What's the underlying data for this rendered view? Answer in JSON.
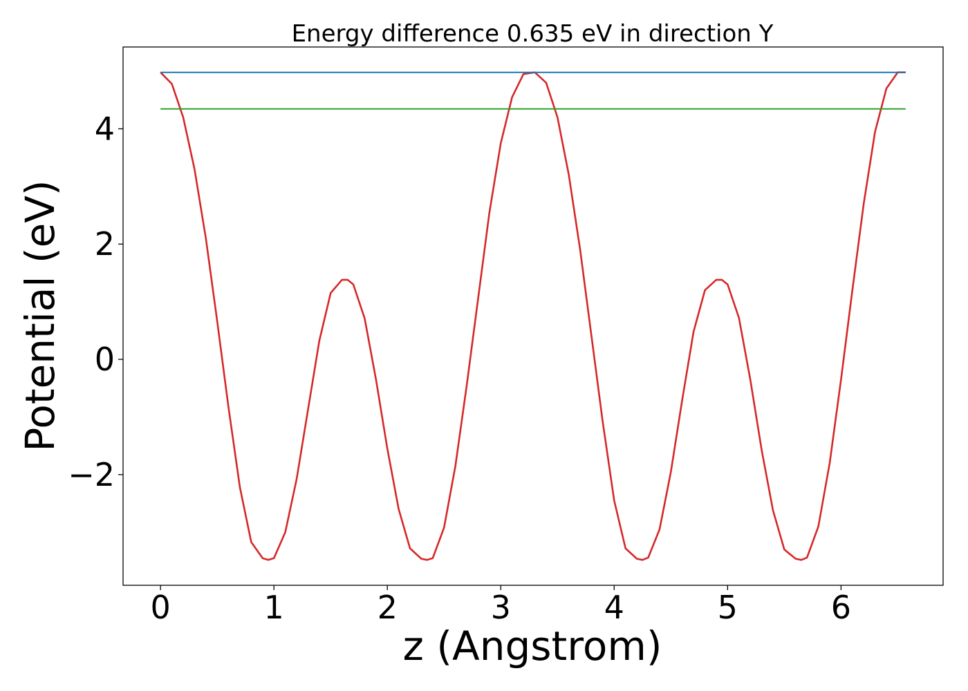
{
  "chart_data": {
    "type": "line",
    "title": "Energy difference 0.635 eV in direction Y",
    "xlabel": "z (Angstrom)",
    "ylabel": "Potential (eV)",
    "xlim": [
      -0.33,
      6.9
    ],
    "ylim": [
      -3.92,
      5.42
    ],
    "xticks": [
      0,
      1,
      2,
      3,
      4,
      5,
      6
    ],
    "xtick_labels": [
      "0",
      "1",
      "2",
      "3",
      "4",
      "5",
      "6"
    ],
    "yticks": [
      -2,
      0,
      2,
      4
    ],
    "ytick_labels": [
      "−2",
      "0",
      "2",
      "4"
    ],
    "grid": false,
    "legend": "none",
    "series": [
      {
        "color": "#d62728",
        "style": "solid",
        "x": [
          0.0,
          0.1,
          0.2,
          0.3,
          0.4,
          0.5,
          0.6,
          0.7,
          0.8,
          0.9,
          0.95,
          1.0,
          1.1,
          1.2,
          1.3,
          1.4,
          1.5,
          1.6,
          1.65,
          1.7,
          1.8,
          1.9,
          2.0,
          2.1,
          2.2,
          2.3,
          2.35,
          2.4,
          2.5,
          2.6,
          2.7,
          2.8,
          2.9,
          3.0,
          3.1,
          3.2,
          3.3,
          3.4,
          3.5,
          3.6,
          3.7,
          3.8,
          3.9,
          4.0,
          4.1,
          4.2,
          4.25,
          4.3,
          4.4,
          4.5,
          4.6,
          4.7,
          4.8,
          4.9,
          4.95,
          5.0,
          5.1,
          5.2,
          5.3,
          5.4,
          5.5,
          5.6,
          5.65,
          5.7,
          5.8,
          5.9,
          6.0,
          6.1,
          6.2,
          6.3,
          6.4,
          6.5,
          6.57
        ],
        "y": [
          4.98,
          4.78,
          4.2,
          3.3,
          2.1,
          0.66,
          -0.84,
          -2.22,
          -3.17,
          -3.45,
          -3.48,
          -3.45,
          -3.0,
          -2.08,
          -0.88,
          0.32,
          1.15,
          1.38,
          1.38,
          1.3,
          0.71,
          -0.35,
          -1.55,
          -2.6,
          -3.28,
          -3.46,
          -3.48,
          -3.45,
          -2.92,
          -1.85,
          -0.45,
          1.05,
          2.55,
          3.75,
          4.55,
          4.95,
          4.98,
          4.8,
          4.2,
          3.2,
          1.9,
          0.4,
          -1.1,
          -2.45,
          -3.28,
          -3.46,
          -3.48,
          -3.44,
          -2.95,
          -1.95,
          -0.7,
          0.48,
          1.2,
          1.38,
          1.38,
          1.3,
          0.72,
          -0.35,
          -1.57,
          -2.62,
          -3.3,
          -3.46,
          -3.48,
          -3.44,
          -2.9,
          -1.8,
          -0.35,
          1.2,
          2.7,
          3.95,
          4.7,
          4.98,
          4.98
        ]
      },
      {
        "color": "#1f77b4",
        "style": "solid",
        "x": [
          0.0,
          6.57
        ],
        "y": [
          4.98,
          4.98
        ]
      },
      {
        "color": "#2ca02c",
        "style": "solid",
        "x": [
          0.0,
          6.57
        ],
        "y": [
          4.345,
          4.345
        ]
      }
    ]
  }
}
